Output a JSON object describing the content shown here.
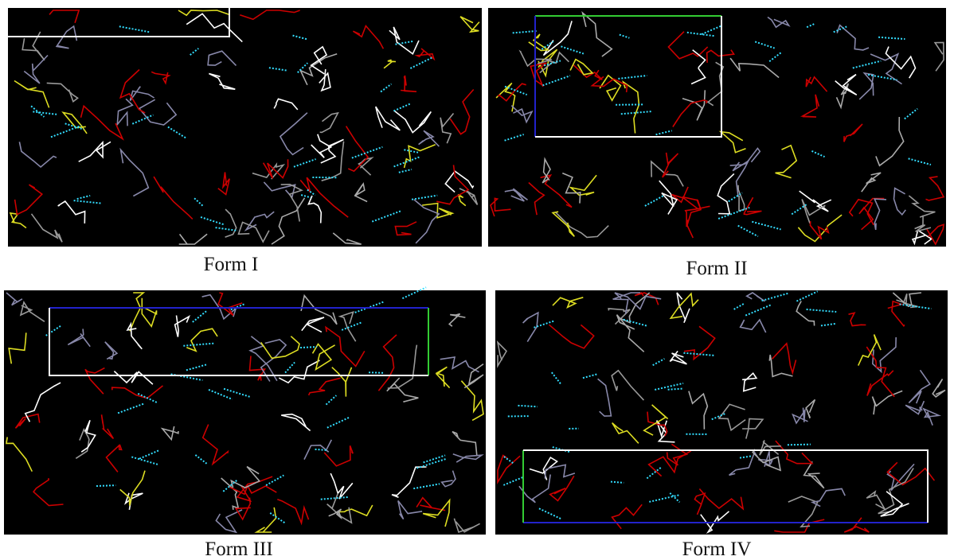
{
  "panels": [
    {
      "caption": "Form I"
    },
    {
      "caption": "Form II"
    },
    {
      "caption": "Form III"
    },
    {
      "caption": "Form IV"
    }
  ]
}
